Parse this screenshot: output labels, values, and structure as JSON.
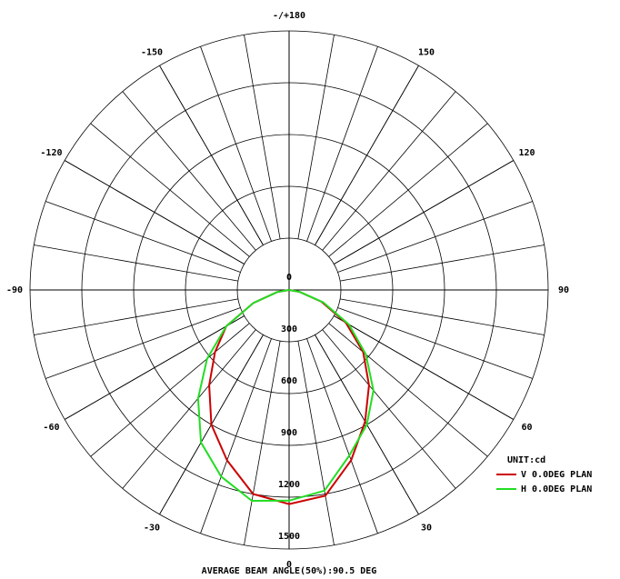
{
  "chart_data": {
    "type": "polar",
    "footer": "AVERAGE BEAM ANGLE(50%):90.5 DEG",
    "unit": "UNIT:cd",
    "angles": [
      -90,
      -80,
      -70,
      -60,
      -50,
      -40,
      -30,
      -20,
      -10,
      0,
      10,
      20,
      30,
      40,
      50,
      60,
      70,
      80,
      90
    ],
    "series": [
      {
        "name": "V 0.0DEG PLAN",
        "color": "#cc0000",
        "values": [
          0,
          70,
          220,
          420,
          560,
          720,
          900,
          1050,
          1200,
          1240,
          1210,
          1050,
          880,
          720,
          560,
          380,
          200,
          60,
          0
        ]
      },
      {
        "name": "H 0.0DEG PLAN",
        "color": "#22dd22",
        "values": [
          0,
          70,
          220,
          420,
          620,
          820,
          1020,
          1150,
          1240,
          1220,
          1180,
          1020,
          900,
          760,
          580,
          400,
          210,
          60,
          0
        ]
      }
    ],
    "rlim": [
      0,
      1500
    ],
    "rticks": [
      0,
      300,
      600,
      900,
      1200,
      1500
    ],
    "thetaticks": [
      0,
      30,
      60,
      90,
      120,
      150,
      {
        "value": 180,
        "label": "-/+180"
      },
      -150,
      -120,
      -90,
      -60,
      -30
    ]
  }
}
